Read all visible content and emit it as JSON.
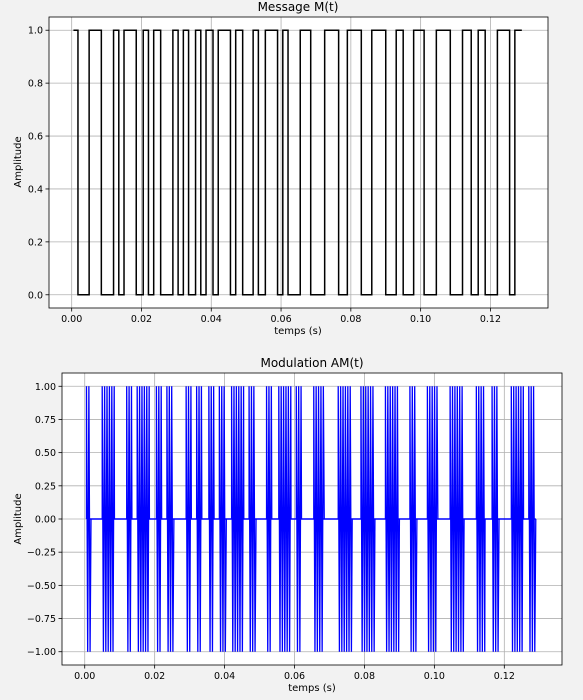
{
  "chart_data": [
    {
      "type": "line",
      "title": "Message M(t)",
      "xlabel": "temps (s)",
      "ylabel": "Amplitude",
      "xlim": [
        -0.0065,
        0.1365
      ],
      "ylim": [
        -0.05,
        1.05
      ],
      "xticks": [
        0.0,
        0.02,
        0.04,
        0.06,
        0.08,
        0.1,
        0.12
      ],
      "xtick_labels": [
        "0.00",
        "0.02",
        "0.04",
        "0.06",
        "0.08",
        "0.10",
        "0.12"
      ],
      "yticks": [
        0.0,
        0.2,
        0.4,
        0.6,
        0.8,
        1.0
      ],
      "ytick_labels": [
        "0.0",
        "0.2",
        "0.4",
        "0.6",
        "0.8",
        "1.0"
      ],
      "grid": true,
      "color": "#000000",
      "series": [
        {
          "step": "post",
          "x": [
            0.0005,
            0.0018,
            0.005,
            0.0085,
            0.012,
            0.0135,
            0.015,
            0.0185,
            0.0205,
            0.022,
            0.0235,
            0.0255,
            0.029,
            0.0305,
            0.032,
            0.0335,
            0.0355,
            0.037,
            0.0385,
            0.0405,
            0.042,
            0.0455,
            0.047,
            0.049,
            0.052,
            0.0535,
            0.0555,
            0.059,
            0.0605,
            0.062,
            0.0655,
            0.0685,
            0.0725,
            0.0765,
            0.079,
            0.083,
            0.086,
            0.09,
            0.093,
            0.095,
            0.098,
            0.101,
            0.1045,
            0.1085,
            0.112,
            0.1145,
            0.1165,
            0.1185,
            0.122,
            0.1255,
            0.127,
            0.129
          ],
          "y": [
            1,
            0,
            1,
            0,
            1,
            0,
            1,
            0,
            1,
            0,
            1,
            0,
            1,
            0,
            1,
            0,
            1,
            0,
            1,
            0,
            1,
            0,
            1,
            0,
            1,
            0,
            1,
            0,
            1,
            0,
            1,
            0,
            1,
            0,
            1,
            0,
            1,
            0,
            1,
            0,
            1,
            0,
            1,
            0,
            1,
            0,
            1,
            0,
            1,
            0,
            1,
            1
          ]
        }
      ]
    },
    {
      "type": "line",
      "title": "Modulation AM(t)",
      "xlabel": "temps (s)",
      "ylabel": "Amplitude",
      "xlim": [
        -0.0065,
        0.1365
      ],
      "ylim": [
        -1.1,
        1.1
      ],
      "xticks": [
        0.0,
        0.02,
        0.04,
        0.06,
        0.08,
        0.1,
        0.12
      ],
      "xtick_labels": [
        "0.00",
        "0.02",
        "0.04",
        "0.06",
        "0.08",
        "0.10",
        "0.12"
      ],
      "yticks": [
        -1.0,
        -0.75,
        -0.5,
        -0.25,
        0.0,
        0.25,
        0.5,
        0.75,
        1.0
      ],
      "ytick_labels": [
        "−1.00",
        "−0.75",
        "−0.50",
        "−0.25",
        "0.00",
        "0.25",
        "0.50",
        "0.75",
        "1.00"
      ],
      "grid": true,
      "color": "#0000ff",
      "series": [
        {
          "envelope_of": "message",
          "amplitude": 1.0
        }
      ]
    }
  ]
}
